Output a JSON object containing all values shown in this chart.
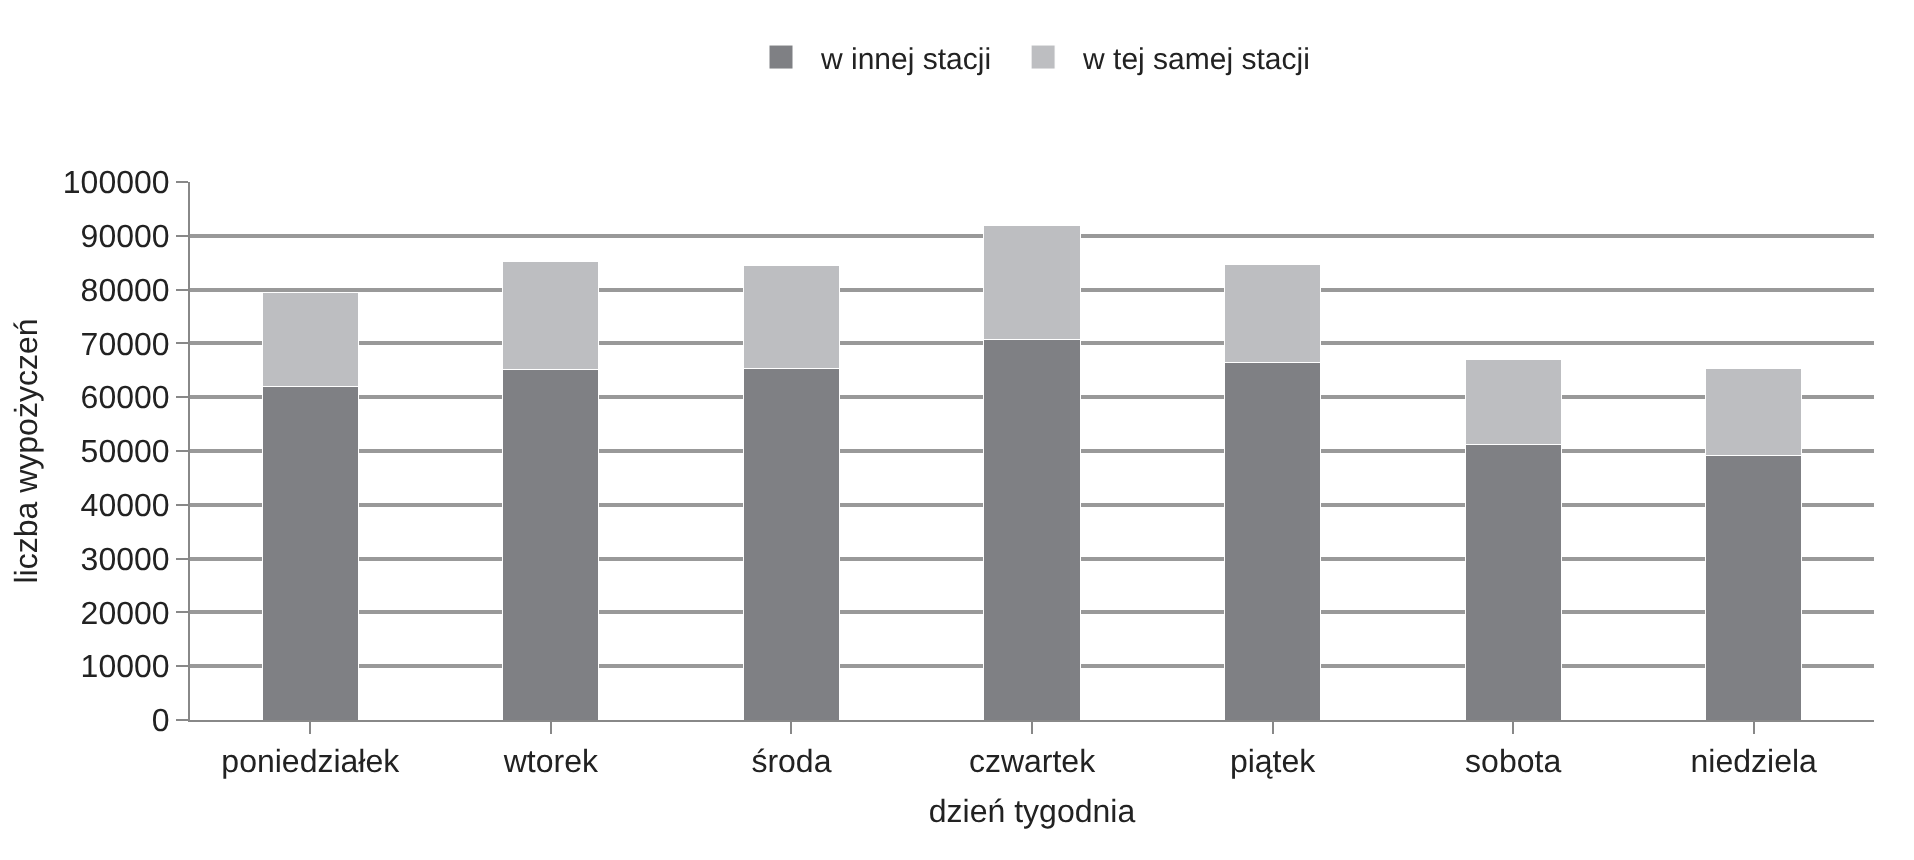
{
  "chart_data": {
    "type": "bar",
    "stacked": true,
    "xlabel": "dzień tygodnia",
    "ylabel": "liczba wypożyczeń",
    "categories": [
      "poniedziałek",
      "wtorek",
      "środa",
      "czwartek",
      "piątek",
      "sobota",
      "niedziela"
    ],
    "series": [
      {
        "name": "w innej stacji",
        "color": "#7f8084",
        "values": [
          61900,
          65200,
          65300,
          70700,
          66400,
          51200,
          49100
        ]
      },
      {
        "name": "w tej samej stacji",
        "color": "#bdbec1",
        "values": [
          17500,
          20000,
          19200,
          21200,
          18200,
          15900,
          16300
        ]
      }
    ],
    "ylim": [
      0,
      100000
    ],
    "yticks": [
      0,
      10000,
      20000,
      30000,
      40000,
      50000,
      60000,
      70000,
      80000,
      90000,
      100000
    ],
    "grid": "y",
    "legend": "top"
  }
}
